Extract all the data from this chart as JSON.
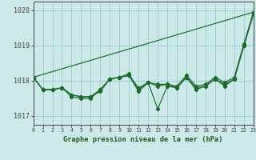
{
  "title": "Graphe pression niveau de la mer (hPa)",
  "xlim": [
    0,
    23
  ],
  "ylim": [
    1016.75,
    1020.25
  ],
  "yticks": [
    1017,
    1018,
    1019,
    1020
  ],
  "xticks": [
    0,
    1,
    2,
    3,
    4,
    5,
    6,
    7,
    8,
    9,
    10,
    11,
    12,
    13,
    14,
    15,
    16,
    17,
    18,
    19,
    20,
    21,
    22,
    23
  ],
  "background_color": "#cce8e8",
  "grid_color": "#99cccc",
  "line_color": "#1a6b2a",
  "marker_color": "#1a6b2a",
  "title_color": "#1a5c1a",
  "axis_color": "#444444",
  "trend_x": [
    0,
    23
  ],
  "trend_y": [
    1018.1,
    1019.95
  ],
  "series_main": [
    1018.1,
    1017.75,
    1017.75,
    1017.8,
    1017.55,
    1017.5,
    1017.5,
    1017.75,
    1018.05,
    1018.1,
    1018.15,
    1017.7,
    1017.95,
    1017.2,
    1017.85,
    1017.8,
    1018.1,
    1017.75,
    1017.85,
    1018.05,
    1017.85,
    1018.05,
    1019.0,
    1019.9
  ],
  "series_upper": [
    1018.1,
    1017.75,
    1017.75,
    1017.8,
    1017.6,
    1017.55,
    1017.55,
    1017.75,
    1018.05,
    1018.1,
    1018.2,
    1017.75,
    1017.95,
    1017.85,
    1017.9,
    1017.85,
    1018.15,
    1017.85,
    1017.9,
    1018.1,
    1017.95,
    1018.1,
    1019.05,
    1019.95
  ],
  "series_flat": [
    1018.1,
    1017.75,
    1017.75,
    1017.8,
    1017.6,
    1017.55,
    1017.55,
    1017.7,
    1018.05,
    1018.1,
    1018.15,
    1017.8,
    1017.95,
    1017.9,
    1017.9,
    1017.8,
    1018.1,
    1017.8,
    1017.85,
    1018.05,
    1017.9,
    1018.05,
    1019.0,
    1019.9
  ]
}
